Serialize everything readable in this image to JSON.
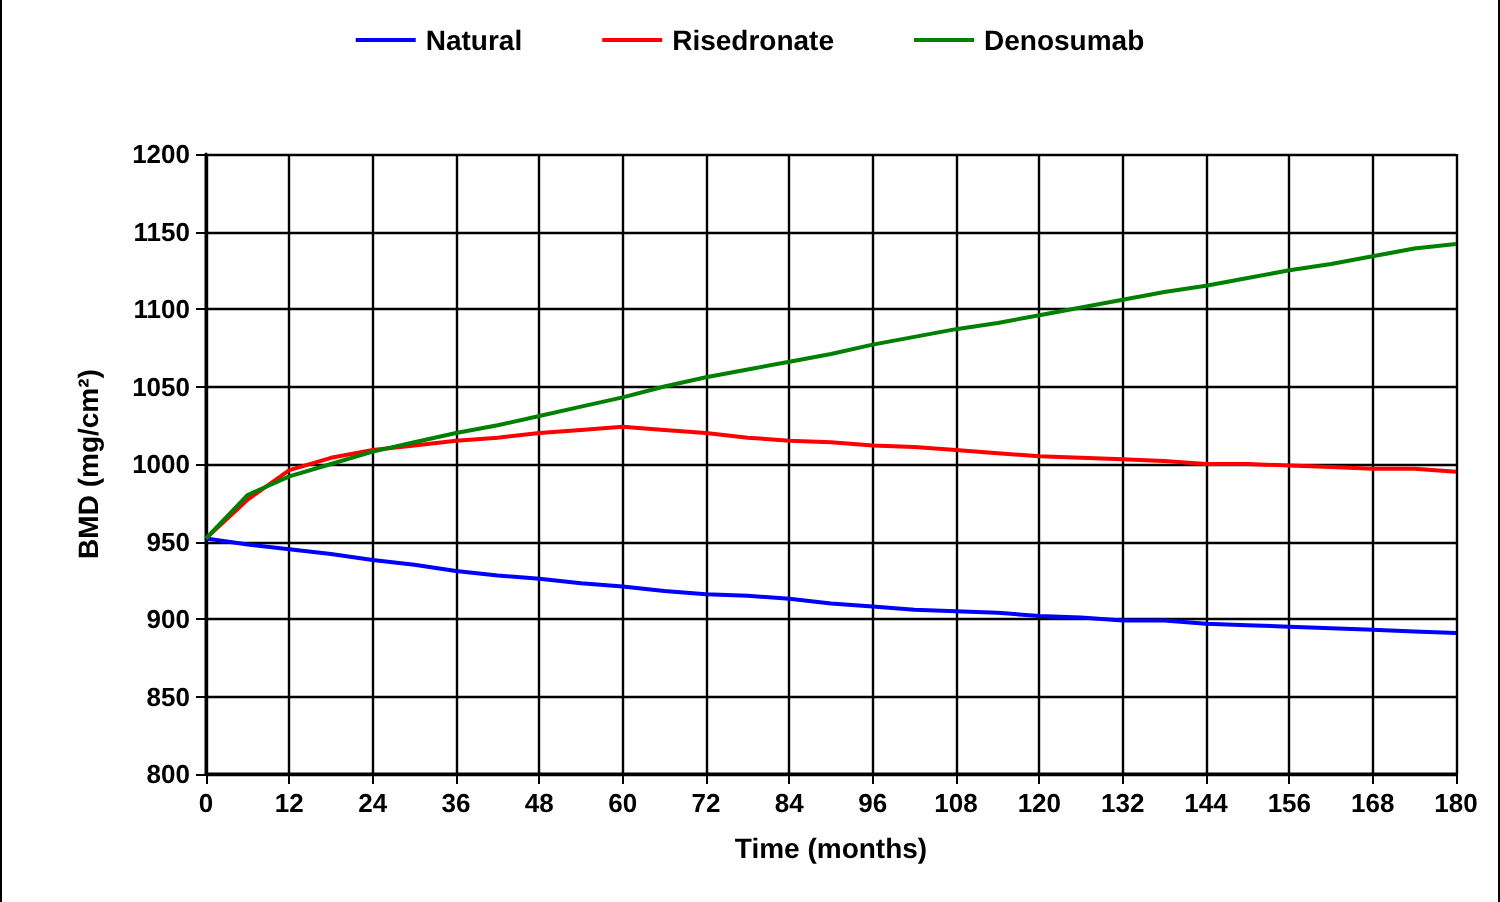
{
  "chart_data": {
    "type": "line",
    "xlabel": "Time (months)",
    "ylabel": "BMD (mg/cm²)",
    "x": [
      0,
      6,
      12,
      18,
      24,
      30,
      36,
      42,
      48,
      54,
      60,
      66,
      72,
      78,
      84,
      90,
      96,
      102,
      108,
      114,
      120,
      126,
      132,
      138,
      144,
      150,
      156,
      162,
      168,
      174,
      180
    ],
    "series": [
      {
        "name": "Natural",
        "color": "#0000ff",
        "values": [
          952,
          948,
          945,
          942,
          938,
          935,
          931,
          928,
          926,
          923,
          921,
          918,
          916,
          915,
          913,
          910,
          908,
          906,
          905,
          904,
          902,
          901,
          899,
          899,
          897,
          896,
          895,
          894,
          893,
          892,
          891
        ]
      },
      {
        "name": "Risedronate",
        "color": "#ff0000",
        "values": [
          952,
          977,
          996,
          1004,
          1009,
          1012,
          1015,
          1017,
          1020,
          1022,
          1024,
          1022,
          1020,
          1017,
          1015,
          1014,
          1012,
          1011,
          1009,
          1007,
          1005,
          1004,
          1003,
          1002,
          1000,
          1000,
          999,
          998,
          997,
          997,
          995
        ]
      },
      {
        "name": "Denosumab",
        "color": "#008000",
        "values": [
          952,
          980,
          992,
          1000,
          1008,
          1014,
          1020,
          1025,
          1031,
          1037,
          1043,
          1050,
          1056,
          1061,
          1066,
          1071,
          1077,
          1082,
          1087,
          1091,
          1096,
          1101,
          1106,
          1111,
          1115,
          1120,
          1125,
          1129,
          1134,
          1139,
          1142
        ]
      }
    ],
    "xlim": [
      0,
      180
    ],
    "xticks": [
      0,
      12,
      24,
      36,
      48,
      60,
      72,
      84,
      96,
      108,
      120,
      132,
      144,
      156,
      168,
      180
    ],
    "ylim": [
      800,
      1200
    ],
    "yticks": [
      800,
      850,
      900,
      950,
      1000,
      1050,
      1100,
      1150,
      1200
    ],
    "grid": true,
    "legend": "top",
    "marker": "none",
    "line_style": "solid"
  }
}
